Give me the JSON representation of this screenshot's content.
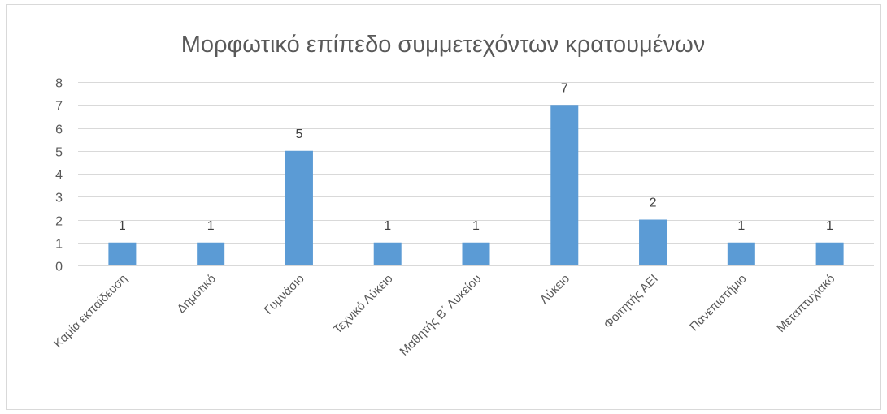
{
  "chart_data": {
    "type": "bar",
    "title": "Μορφωτικό επίπεδο συμμετεχόντων κρατουμένων",
    "categories": [
      "Καμία εκπαίδευση",
      "Δημοτικό",
      "Γυμνάσιο",
      "Τεχνικό Λύκειο",
      "Μαθητής Β΄ Λυκείου",
      "Λύκειο",
      "Φοιτητής ΑΕΙ",
      "Πανεπιστήμιο",
      "Μεταπτυχιακό"
    ],
    "values": [
      1,
      1,
      5,
      1,
      1,
      7,
      2,
      1,
      1
    ],
    "ylim": [
      0,
      8
    ],
    "yticks": [
      0,
      1,
      2,
      3,
      4,
      5,
      6,
      7,
      8
    ],
    "grid": true,
    "data_labels": true,
    "legend": false,
    "colors": {
      "bar": "#5B9BD5",
      "gridline": "#D9D9D9",
      "border": "#D9D9D9"
    }
  }
}
